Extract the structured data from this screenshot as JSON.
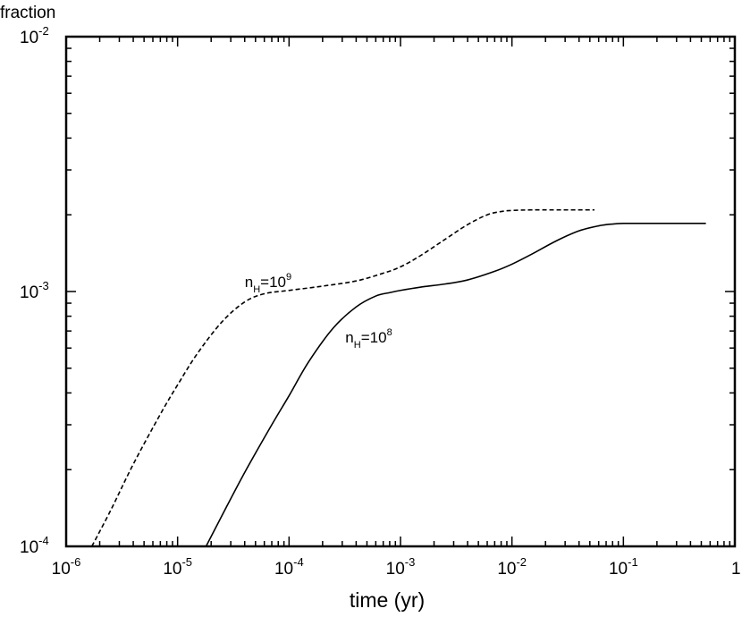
{
  "chart_data": {
    "type": "line",
    "title": "",
    "xlabel": "time (yr)",
    "ylabel": "fraction",
    "x_scale": "log",
    "y_scale": "log",
    "xlim": [
      1e-06,
      1
    ],
    "ylim": [
      0.0001,
      0.01
    ],
    "grid": false,
    "legend": "none",
    "x_ticks": [
      {
        "value": 1e-06,
        "base": "10",
        "exp": "-6"
      },
      {
        "value": 1e-05,
        "base": "10",
        "exp": "-5"
      },
      {
        "value": 0.0001,
        "base": "10",
        "exp": "-4"
      },
      {
        "value": 0.001,
        "base": "10",
        "exp": "-3"
      },
      {
        "value": 0.01,
        "base": "10",
        "exp": "-2"
      },
      {
        "value": 0.1,
        "base": "10",
        "exp": "-1"
      },
      {
        "value": 1,
        "base": "1",
        "exp": ""
      }
    ],
    "y_ticks": [
      {
        "value": 0.0001,
        "base": "10",
        "exp": "-4"
      },
      {
        "value": 0.001,
        "base": "10",
        "exp": "-3"
      },
      {
        "value": 0.01,
        "base": "10",
        "exp": "-2"
      }
    ],
    "series": [
      {
        "style": "dashed",
        "color": "#000000",
        "x": [
          1.7e-06,
          2.5e-06,
          4e-06,
          7e-06,
          1e-05,
          1.5e-05,
          2.5e-05,
          4e-05,
          6e-05,
          0.0001,
          0.0002,
          0.0004,
          0.0007,
          0.001,
          0.0015,
          0.0025,
          0.004,
          0.006,
          0.008,
          0.01,
          0.015,
          0.025,
          0.055
        ],
        "y": [
          0.0001,
          0.000138,
          0.00021,
          0.00033,
          0.00043,
          0.00057,
          0.00076,
          0.00091,
          0.00098,
          0.00101,
          0.00105,
          0.0011,
          0.00118,
          0.00125,
          0.00138,
          0.0016,
          0.00183,
          0.002,
          0.00206,
          0.00208,
          0.00209,
          0.00209,
          0.00209
        ]
      },
      {
        "style": "solid",
        "color": "#000000",
        "x": [
          1.8e-05,
          2.5e-05,
          4e-05,
          7e-05,
          0.0001,
          0.00015,
          0.00025,
          0.0004,
          0.0006,
          0.0008,
          0.001,
          0.0015,
          0.0025,
          0.004,
          0.007,
          0.01,
          0.015,
          0.025,
          0.04,
          0.06,
          0.08,
          0.1,
          0.15,
          0.25,
          0.55
        ],
        "y": [
          0.0001,
          0.000132,
          0.000195,
          0.0003,
          0.00039,
          0.00053,
          0.00072,
          0.00087,
          0.00096,
          0.00099,
          0.00101,
          0.00104,
          0.00107,
          0.00111,
          0.0012,
          0.00128,
          0.0014,
          0.00158,
          0.00173,
          0.00181,
          0.00184,
          0.00185,
          0.00185,
          0.00185,
          0.00185
        ]
      }
    ],
    "annotations": [
      {
        "base": "n",
        "sub": "H",
        "eq": "=10",
        "sup": "9",
        "x": 4e-05,
        "y": 0.00104
      },
      {
        "base": "n",
        "sub": "H",
        "eq": "=10",
        "sup": "8",
        "x": 0.00032,
        "y": 0.00063
      }
    ]
  }
}
